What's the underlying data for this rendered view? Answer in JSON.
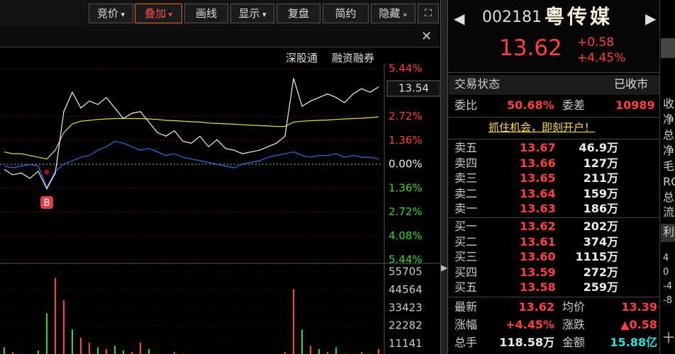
{
  "toolbar": {
    "buttons": [
      "竞价",
      "叠加",
      "画线",
      "显示",
      "复盘",
      "简约",
      "隐藏"
    ]
  },
  "chart_header": {
    "links": [
      "深股通",
      "融资融券"
    ]
  },
  "chart_data": [
    {
      "type": "line",
      "name": "intraday",
      "price_tag": "13.54",
      "marker": "B",
      "ylim": [
        -5.44,
        5.44
      ],
      "yticks": [
        {
          "value": 5.44,
          "label": "5.44%"
        },
        {
          "value": 2.72,
          "label": "2.72%"
        },
        {
          "value": 1.36,
          "label": "1.36%"
        },
        {
          "value": 0,
          "label": "0.00%"
        },
        {
          "value": -1.36,
          "label": "1.36%"
        },
        {
          "value": -2.72,
          "label": "2.72%"
        },
        {
          "value": -4.08,
          "label": "4.08%"
        },
        {
          "value": -5.44,
          "label": "5.44%"
        }
      ],
      "up_color": "#ff3b3b",
      "zero_color": "#e8e8e8",
      "down_color": "#33d633",
      "series": [
        {
          "color": "#f2f2f2",
          "values": [
            -0.3,
            -0.6,
            -0.5,
            -0.8,
            -0.4,
            -1.4,
            -0.5,
            3.0,
            4.1,
            3.2,
            3.6,
            3.4,
            3.8,
            3.2,
            2.6,
            2.9,
            3.0,
            2.4,
            1.8,
            1.6,
            1.9,
            1.3,
            1.2,
            1.6,
            1.0,
            1.4,
            0.9,
            0.8,
            0.6,
            0.7,
            0.8,
            1.0,
            1.2,
            1.6,
            4.9,
            3.3,
            3.6,
            3.8,
            4.0,
            3.8,
            3.5,
            4.0,
            4.3,
            4.1,
            4.4
          ]
        },
        {
          "color": "#e6e23a",
          "values": [
            0.7,
            0.6,
            0.6,
            0.5,
            0.4,
            0.3,
            0.8,
            1.8,
            2.3,
            2.45,
            2.5,
            2.55,
            2.58,
            2.6,
            2.6,
            2.6,
            2.6,
            2.58,
            2.55,
            2.5,
            2.48,
            2.45,
            2.42,
            2.4,
            2.35,
            2.32,
            2.3,
            2.28,
            2.25,
            2.22,
            2.2,
            2.18,
            2.15,
            2.15,
            2.4,
            2.45,
            2.48,
            2.5,
            2.52,
            2.55,
            2.58,
            2.6,
            2.62,
            2.65,
            2.7
          ]
        },
        {
          "color": "#2f6fe8",
          "values": [
            -0.1,
            -0.2,
            -0.1,
            0,
            -0.1,
            -1.3,
            -0.4,
            0,
            0.2,
            0.4,
            0.5,
            0.8,
            1.0,
            1.3,
            1.2,
            1.0,
            0.8,
            0.9,
            0.7,
            0.5,
            0.6,
            0.4,
            0.3,
            0.2,
            0.1,
            0.0,
            -0.1,
            -0.2,
            0.0,
            0.1,
            0.2,
            0.4,
            0.5,
            0.6,
            0.7,
            0.5,
            0.4,
            0.5,
            0.5,
            0.6,
            0.4,
            0.5,
            0.4,
            0.4,
            0.3
          ]
        }
      ]
    },
    {
      "type": "bar",
      "name": "volume",
      "ylim": [
        0,
        55705
      ],
      "yticks": [
        55705,
        44564,
        33423,
        22282,
        11141
      ],
      "values": [
        9000,
        6000,
        5000,
        4000,
        7000,
        30000,
        52000,
        38000,
        20000,
        15000,
        12000,
        9000,
        8000,
        10000,
        7000,
        6000,
        12000,
        8000,
        5000,
        4000,
        6000,
        5000,
        4000,
        3000,
        3500,
        3000,
        2500,
        3000,
        4000,
        3500,
        3000,
        2500,
        4000,
        6000,
        45000,
        20000,
        10000,
        8000,
        6000,
        9000,
        5000,
        4000,
        6000,
        5000,
        8000
      ],
      "colors": [
        "#33d633",
        "#ff3b3b",
        "#33d633",
        "#ff3b3b",
        "#33d633",
        "#33d633",
        "#ff3b3b",
        "#ff3b3b",
        "#33d633",
        "#ff3b3b",
        "#ff3b3b",
        "#33d633",
        "#ff3b3b",
        "#33d633",
        "#33d633",
        "#ff3b3b",
        "#ff3b3b",
        "#33d633",
        "#33d633",
        "#ff3b3b",
        "#ff3b3b",
        "#33d633",
        "#33d633",
        "#ff3b3b",
        "#33d633",
        "#ff3b3b",
        "#33d633",
        "#33d633",
        "#ff3b3b",
        "#33d633",
        "#ff3b3b",
        "#ff3b3b",
        "#ff3b3b",
        "#ff3b3b",
        "#ff3b3b",
        "#33d633",
        "#ff3b3b",
        "#33d633",
        "#ff3b3b",
        "#33d633",
        "#33d633",
        "#ff3b3b",
        "#ff3b3b",
        "#33d633",
        "#ff3b3b"
      ]
    }
  ],
  "quote": {
    "code": "002181",
    "name": "粤传媒",
    "price": "13.62",
    "change": "+0.58",
    "change_pct": "+4.45%",
    "status_label": "交易状态",
    "status": "已收市",
    "ratio_label": "委比",
    "ratio": "50.68%",
    "diff_label": "委差",
    "diff": "10989",
    "promo": "抓住机会，即刻开户！",
    "asks": [
      [
        "卖五",
        "13.67",
        "46.9万"
      ],
      [
        "卖四",
        "13.66",
        "127万"
      ],
      [
        "卖三",
        "13.65",
        "211万"
      ],
      [
        "卖二",
        "13.64",
        "159万"
      ],
      [
        "卖一",
        "13.63",
        "186万"
      ]
    ],
    "bids": [
      [
        "买一",
        "13.62",
        "202万"
      ],
      [
        "买二",
        "13.61",
        "374万"
      ],
      [
        "买三",
        "13.60",
        "1115万"
      ],
      [
        "买四",
        "13.59",
        "272万"
      ],
      [
        "买五",
        "13.58",
        "259万"
      ]
    ],
    "stats": [
      [
        "最新",
        "13.62",
        "均价",
        "13.39"
      ],
      [
        "涨幅",
        "+4.45%",
        "涨跌",
        "▲0.58"
      ],
      [
        "总手",
        "118.58万",
        "金额",
        "15.88亿"
      ]
    ]
  },
  "side_column": [
    "收",
    "净",
    "总",
    "净",
    "毛",
    "RO",
    "总",
    "流",
    "利",
    "4",
    "0",
    "-4",
    "-8",
    "十"
  ]
}
